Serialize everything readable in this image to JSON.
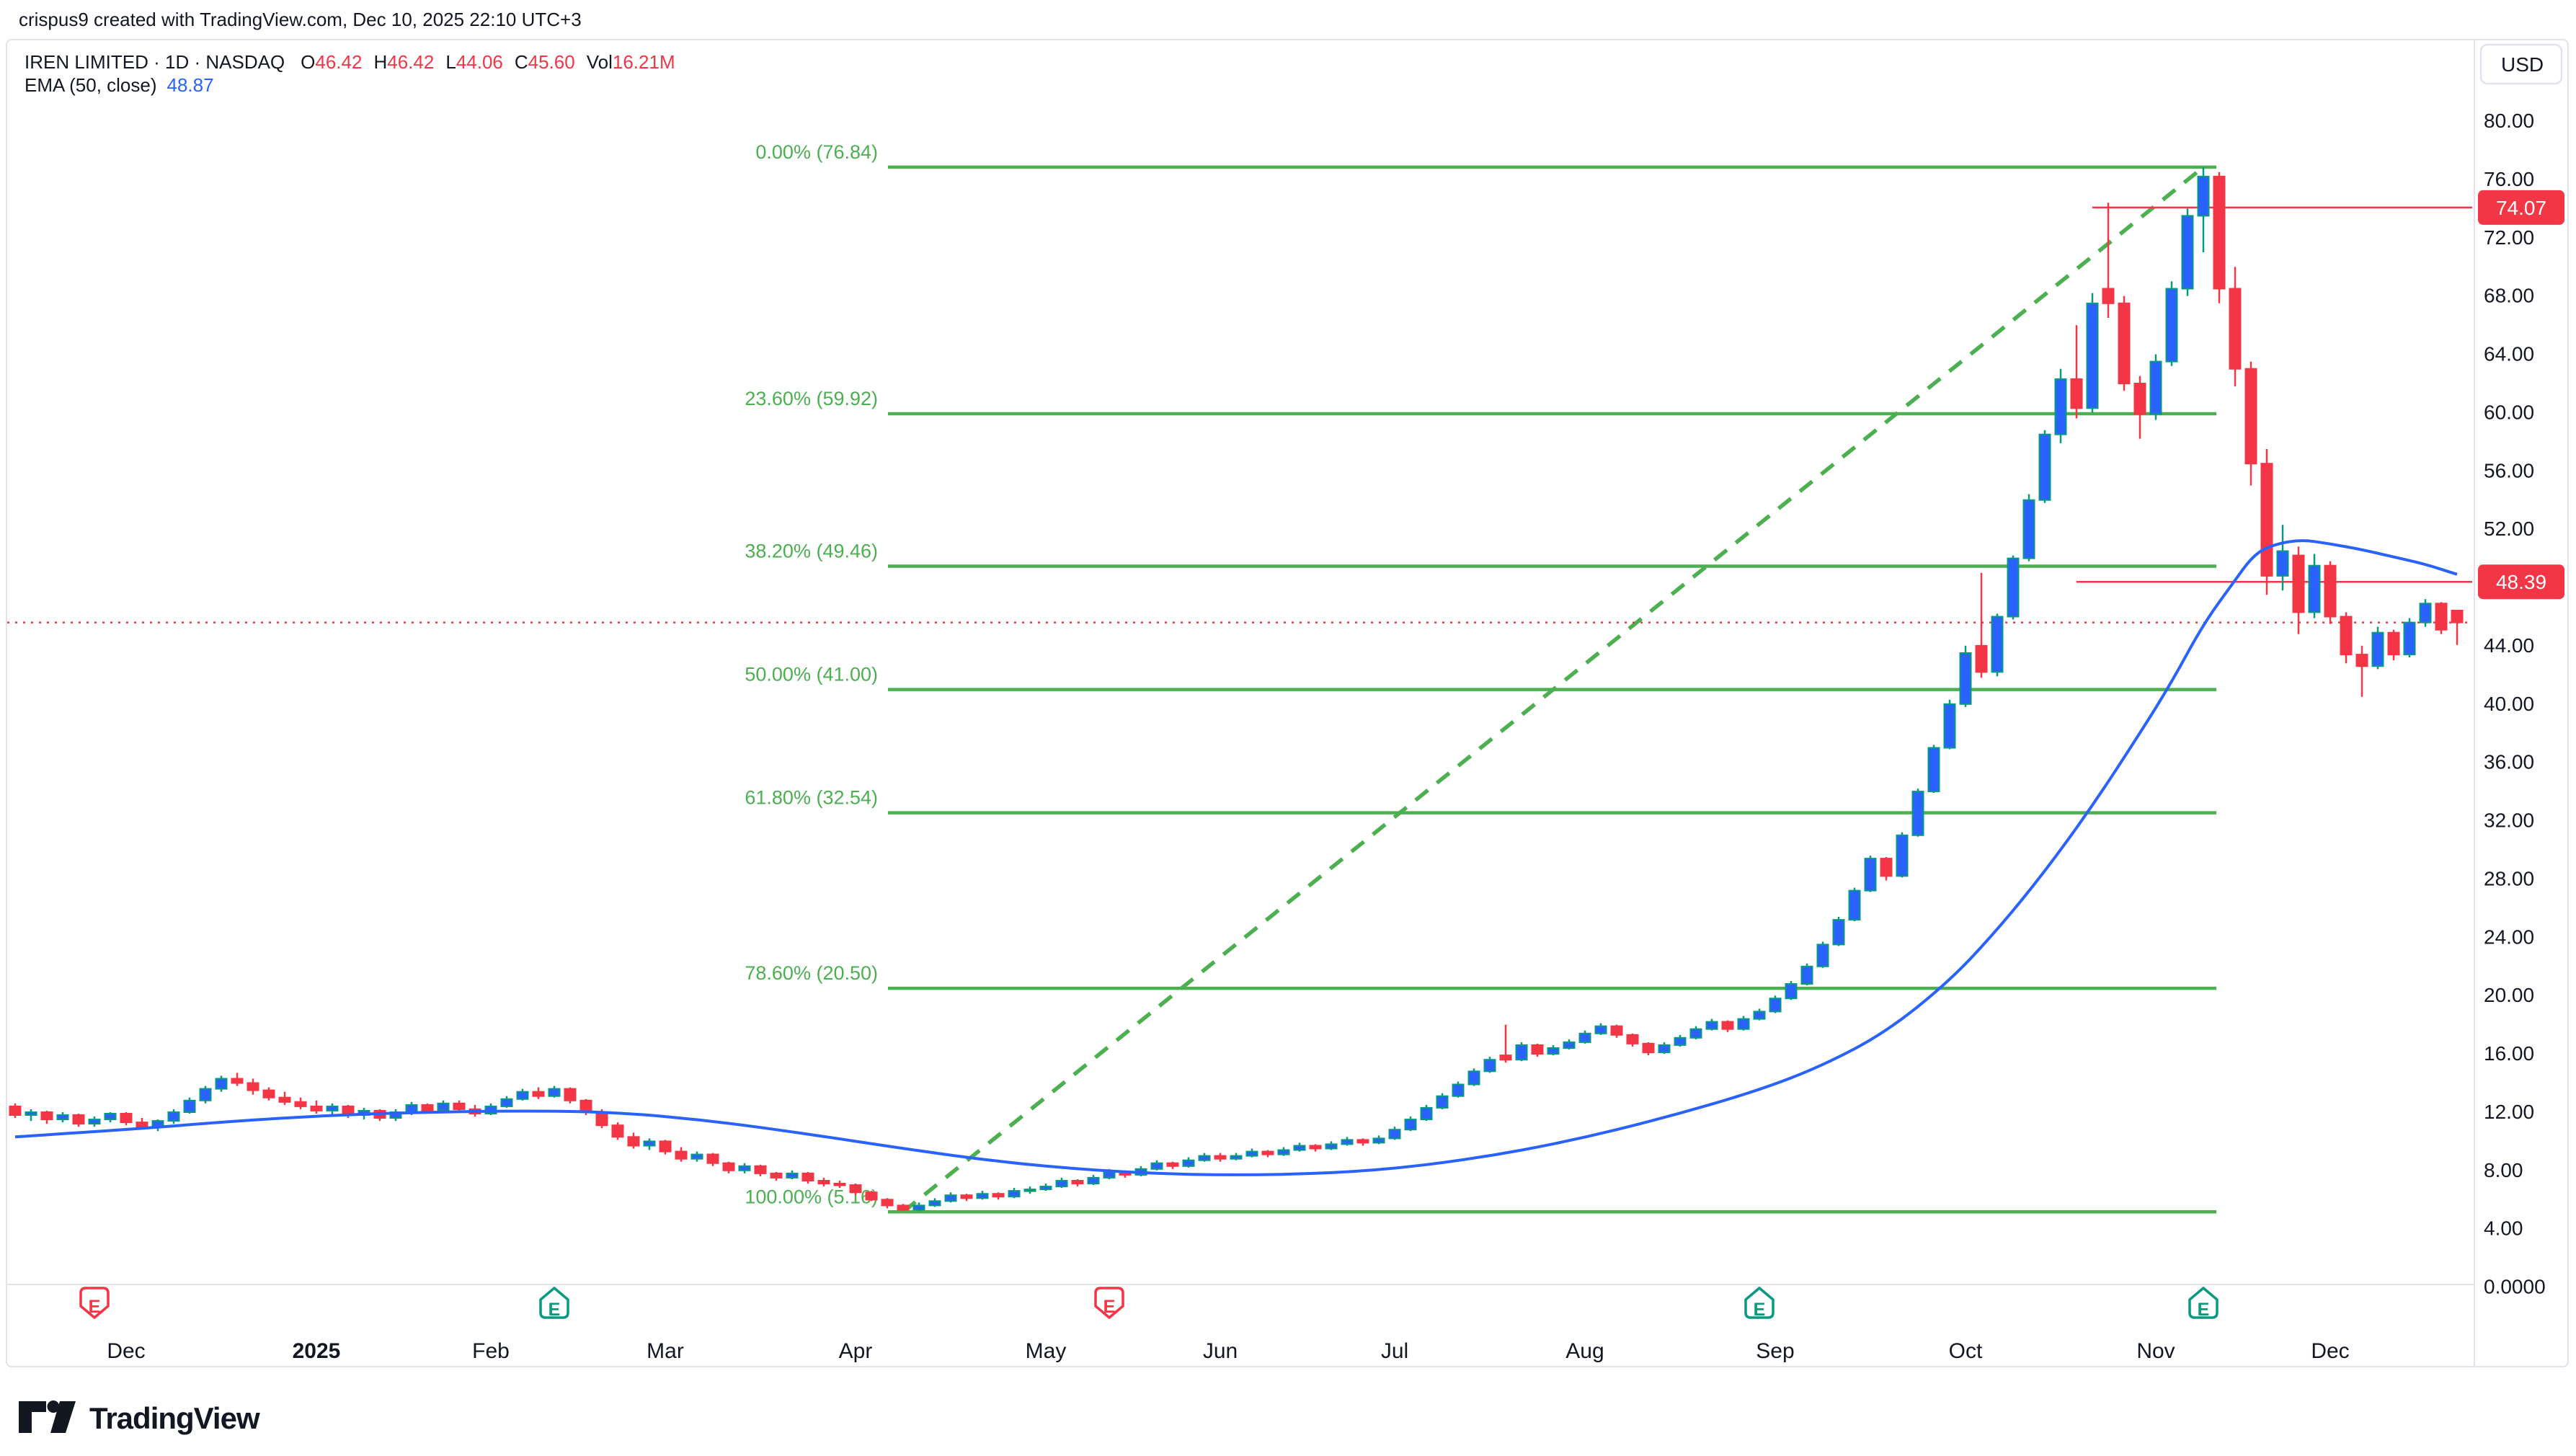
{
  "watermark": "crispus9 created with TradingView.com, Dec 10, 2025 22:10 UTC+3",
  "legend": {
    "title": "IREN LIMITED · 1D · NASDAQ",
    "ohlc": {
      "open_label": "O",
      "open": "46.42",
      "high_label": "H",
      "high": "46.42",
      "low_label": "L",
      "low": "44.06",
      "close_label": "C",
      "close": "45.60",
      "volume_label": "Vol",
      "volume": "16.21M"
    },
    "indicator": {
      "name": "EMA (50, close)",
      "value": "48.87"
    }
  },
  "price_axis": {
    "currency": "USD",
    "labels": [
      {
        "text": "80.00",
        "price": 80
      },
      {
        "text": "76.00",
        "price": 76
      },
      {
        "text": "72.00",
        "price": 72
      },
      {
        "text": "68.00",
        "price": 68
      },
      {
        "text": "64.00",
        "price": 64
      },
      {
        "text": "60.00",
        "price": 60
      },
      {
        "text": "56.00",
        "price": 56
      },
      {
        "text": "52.00",
        "price": 52
      },
      {
        "text": "44.00",
        "price": 44
      },
      {
        "text": "40.00",
        "price": 40
      },
      {
        "text": "36.00",
        "price": 36
      },
      {
        "text": "32.00",
        "price": 32
      },
      {
        "text": "28.00",
        "price": 28
      },
      {
        "text": "24.00",
        "price": 24
      },
      {
        "text": "20.00",
        "price": 20
      },
      {
        "text": "16.00",
        "price": 16
      },
      {
        "text": "12.00",
        "price": 12
      },
      {
        "text": "8.00",
        "price": 8
      },
      {
        "text": "4.00",
        "price": 4
      },
      {
        "text": "0.0000",
        "price": 0
      }
    ],
    "badges": [
      {
        "text": "74.07",
        "price": 74.07
      },
      {
        "text": "48.39",
        "price": 48.39
      }
    ]
  },
  "time_axis": {
    "months": [
      {
        "label": "Dec",
        "index": 7,
        "bold": false
      },
      {
        "label": "2025",
        "index": 19,
        "bold": true
      },
      {
        "label": "Feb",
        "index": 30,
        "bold": false
      },
      {
        "label": "Mar",
        "index": 41,
        "bold": false
      },
      {
        "label": "Apr",
        "index": 53,
        "bold": false
      },
      {
        "label": "May",
        "index": 65,
        "bold": false
      },
      {
        "label": "Jun",
        "index": 76,
        "bold": false
      },
      {
        "label": "Jul",
        "index": 87,
        "bold": false
      },
      {
        "label": "Aug",
        "index": 99,
        "bold": false
      },
      {
        "label": "Sep",
        "index": 111,
        "bold": false
      },
      {
        "label": "Oct",
        "index": 123,
        "bold": false
      },
      {
        "label": "Nov",
        "index": 135,
        "bold": false
      },
      {
        "label": "Dec",
        "index": 146,
        "bold": false
      }
    ],
    "earnings_markers": [
      {
        "index": 5,
        "letter": "E",
        "direction": "down",
        "color": "#F23645"
      },
      {
        "index": 34,
        "letter": "E",
        "direction": "up",
        "color": "#089981"
      },
      {
        "index": 69,
        "letter": "E",
        "direction": "down",
        "color": "#F23645"
      },
      {
        "index": 110,
        "letter": "E",
        "direction": "up",
        "color": "#089981"
      },
      {
        "index": 138,
        "letter": "E",
        "direction": "up",
        "color": "#089981"
      }
    ]
  },
  "logo": {
    "text": "TradingView"
  },
  "colors": {
    "up_fill": "#2962FF",
    "up_stroke": "#089981",
    "down": "#F23645",
    "ema": "#2962FF",
    "fib": "#4CAF50",
    "axis_text": "#131722",
    "separator": "#E0E3EB",
    "badge_bg": "#F23645",
    "badge_text": "#ffffff"
  },
  "chart_data": {
    "type": "candlestick",
    "title": "IREN LIMITED · 1D · NASDAQ",
    "symbol": "IREN LIMITED",
    "interval": "1D",
    "exchange": "NASDAQ",
    "currency": "USD",
    "y_view_range": [
      0,
      85
    ],
    "x_range_labels": [
      "Dec 2024",
      "Dec 2025"
    ],
    "grid": false,
    "last_candle": {
      "open": 46.42,
      "high": 46.42,
      "low": 44.06,
      "close": 45.6,
      "volume": "16.21M"
    },
    "last_price_line": 45.6,
    "ema_period": 50,
    "ema_last_value": 48.87,
    "candles": [
      [
        12.4,
        12.6,
        11.6,
        11.8
      ],
      [
        11.8,
        12.2,
        11.4,
        12.0
      ],
      [
        12.0,
        12.1,
        11.2,
        11.5
      ],
      [
        11.5,
        12.0,
        11.3,
        11.8
      ],
      [
        11.8,
        11.9,
        11.0,
        11.2
      ],
      [
        11.2,
        11.7,
        11.0,
        11.5
      ],
      [
        11.5,
        12.0,
        11.3,
        11.9
      ],
      [
        11.9,
        12.0,
        11.1,
        11.3
      ],
      [
        11.3,
        11.6,
        10.8,
        11.0
      ],
      [
        11.0,
        11.5,
        10.7,
        11.4
      ],
      [
        11.4,
        12.2,
        11.2,
        12.0
      ],
      [
        12.0,
        13.0,
        11.9,
        12.8
      ],
      [
        12.8,
        13.8,
        12.6,
        13.6
      ],
      [
        13.6,
        14.5,
        13.4,
        14.3
      ],
      [
        14.3,
        14.7,
        13.8,
        14.0
      ],
      [
        14.0,
        14.3,
        13.2,
        13.5
      ],
      [
        13.5,
        13.7,
        12.8,
        13.0
      ],
      [
        13.0,
        13.4,
        12.5,
        12.7
      ],
      [
        12.7,
        13.0,
        12.2,
        12.4
      ],
      [
        12.4,
        12.8,
        11.9,
        12.1
      ],
      [
        12.1,
        12.6,
        11.8,
        12.4
      ],
      [
        12.4,
        12.5,
        11.6,
        11.8
      ],
      [
        11.8,
        12.3,
        11.5,
        12.1
      ],
      [
        12.1,
        12.2,
        11.4,
        11.6
      ],
      [
        11.6,
        12.2,
        11.4,
        12.0
      ],
      [
        12.0,
        12.7,
        11.8,
        12.5
      ],
      [
        12.5,
        12.6,
        11.9,
        12.1
      ],
      [
        12.1,
        12.8,
        12.0,
        12.6
      ],
      [
        12.6,
        12.8,
        12.0,
        12.2
      ],
      [
        12.2,
        12.5,
        11.7,
        11.9
      ],
      [
        11.9,
        12.6,
        11.8,
        12.4
      ],
      [
        12.4,
        13.1,
        12.3,
        12.9
      ],
      [
        12.9,
        13.6,
        12.8,
        13.4
      ],
      [
        13.4,
        13.7,
        12.9,
        13.1
      ],
      [
        13.1,
        13.8,
        13.0,
        13.6
      ],
      [
        13.6,
        13.7,
        12.6,
        12.8
      ],
      [
        12.8,
        12.9,
        11.8,
        12.0
      ],
      [
        12.0,
        12.2,
        10.9,
        11.1
      ],
      [
        11.1,
        11.3,
        10.1,
        10.3
      ],
      [
        10.3,
        10.6,
        9.5,
        9.7
      ],
      [
        9.7,
        10.2,
        9.4,
        10.0
      ],
      [
        10.0,
        10.1,
        9.1,
        9.3
      ],
      [
        9.3,
        9.6,
        8.6,
        8.8
      ],
      [
        8.8,
        9.3,
        8.6,
        9.1
      ],
      [
        9.1,
        9.2,
        8.3,
        8.5
      ],
      [
        8.5,
        8.6,
        7.8,
        8.0
      ],
      [
        8.0,
        8.5,
        7.8,
        8.3
      ],
      [
        8.3,
        8.4,
        7.6,
        7.8
      ],
      [
        7.8,
        7.9,
        7.3,
        7.5
      ],
      [
        7.5,
        8.0,
        7.4,
        7.8
      ],
      [
        7.8,
        7.9,
        7.1,
        7.3
      ],
      [
        7.3,
        7.5,
        6.9,
        7.1
      ],
      [
        7.1,
        7.3,
        6.8,
        7.0
      ],
      [
        7.0,
        7.1,
        6.3,
        6.5
      ],
      [
        6.5,
        6.6,
        5.9,
        6.0
      ],
      [
        6.0,
        6.1,
        5.4,
        5.6
      ],
      [
        5.6,
        5.7,
        5.2,
        5.3
      ],
      [
        5.3,
        5.8,
        5.2,
        5.6
      ],
      [
        5.6,
        6.1,
        5.5,
        5.9
      ],
      [
        5.9,
        6.5,
        5.8,
        6.3
      ],
      [
        6.3,
        6.4,
        5.9,
        6.1
      ],
      [
        6.1,
        6.6,
        6.0,
        6.4
      ],
      [
        6.4,
        6.5,
        6.0,
        6.2
      ],
      [
        6.2,
        6.8,
        6.1,
        6.6
      ],
      [
        6.6,
        6.9,
        6.4,
        6.7
      ],
      [
        6.7,
        7.1,
        6.6,
        6.9
      ],
      [
        6.9,
        7.5,
        6.8,
        7.3
      ],
      [
        7.3,
        7.4,
        6.9,
        7.1
      ],
      [
        7.1,
        7.7,
        7.0,
        7.5
      ],
      [
        7.5,
        8.1,
        7.4,
        7.9
      ],
      [
        7.9,
        8.0,
        7.5,
        7.7
      ],
      [
        7.7,
        8.3,
        7.6,
        8.1
      ],
      [
        8.1,
        8.7,
        8.0,
        8.5
      ],
      [
        8.5,
        8.6,
        8.1,
        8.3
      ],
      [
        8.3,
        8.9,
        8.2,
        8.7
      ],
      [
        8.7,
        9.2,
        8.6,
        9.0
      ],
      [
        9.0,
        9.2,
        8.6,
        8.8
      ],
      [
        8.8,
        9.2,
        8.7,
        9.0
      ],
      [
        9.0,
        9.5,
        8.9,
        9.3
      ],
      [
        9.3,
        9.4,
        8.9,
        9.1
      ],
      [
        9.1,
        9.6,
        9.0,
        9.4
      ],
      [
        9.4,
        9.9,
        9.3,
        9.7
      ],
      [
        9.7,
        9.8,
        9.3,
        9.5
      ],
      [
        9.5,
        10.0,
        9.4,
        9.8
      ],
      [
        9.8,
        10.3,
        9.7,
        10.1
      ],
      [
        10.1,
        10.2,
        9.7,
        9.9
      ],
      [
        9.9,
        10.4,
        9.8,
        10.2
      ],
      [
        10.2,
        11.0,
        10.1,
        10.8
      ],
      [
        10.8,
        11.7,
        10.7,
        11.5
      ],
      [
        11.5,
        12.5,
        11.4,
        12.3
      ],
      [
        12.3,
        13.3,
        12.2,
        13.1
      ],
      [
        13.1,
        14.1,
        13.0,
        13.9
      ],
      [
        13.9,
        15.0,
        13.8,
        14.8
      ],
      [
        14.8,
        15.8,
        14.7,
        15.6
      ],
      [
        15.9,
        18.0,
        15.4,
        15.6
      ],
      [
        15.6,
        16.8,
        15.5,
        16.6
      ],
      [
        16.6,
        16.7,
        15.8,
        16.0
      ],
      [
        16.0,
        16.6,
        15.9,
        16.4
      ],
      [
        16.4,
        17.0,
        16.3,
        16.8
      ],
      [
        16.8,
        17.6,
        16.7,
        17.4
      ],
      [
        17.4,
        18.1,
        17.3,
        17.9
      ],
      [
        17.9,
        18.0,
        17.1,
        17.3
      ],
      [
        17.3,
        17.4,
        16.5,
        16.7
      ],
      [
        16.7,
        16.8,
        15.9,
        16.1
      ],
      [
        16.1,
        16.8,
        16.0,
        16.6
      ],
      [
        16.6,
        17.3,
        16.5,
        17.1
      ],
      [
        17.1,
        17.9,
        17.0,
        17.7
      ],
      [
        17.7,
        18.4,
        17.6,
        18.2
      ],
      [
        18.2,
        18.3,
        17.5,
        17.7
      ],
      [
        17.7,
        18.6,
        17.6,
        18.4
      ],
      [
        18.4,
        19.1,
        18.3,
        18.9
      ],
      [
        18.9,
        20.0,
        18.8,
        19.8
      ],
      [
        19.8,
        21.0,
        19.7,
        20.8
      ],
      [
        20.8,
        22.2,
        20.7,
        22.0
      ],
      [
        22.0,
        23.7,
        21.9,
        23.5
      ],
      [
        23.5,
        25.4,
        23.4,
        25.2
      ],
      [
        25.2,
        27.4,
        25.1,
        27.2
      ],
      [
        27.2,
        29.6,
        27.1,
        29.4
      ],
      [
        29.4,
        29.5,
        27.9,
        28.2
      ],
      [
        28.2,
        31.2,
        28.1,
        31.0
      ],
      [
        31.0,
        34.2,
        30.9,
        34.0
      ],
      [
        34.0,
        37.2,
        33.9,
        37.0
      ],
      [
        37.0,
        40.3,
        36.9,
        40.0
      ],
      [
        40.0,
        44.0,
        39.8,
        43.5
      ],
      [
        44.0,
        49.0,
        41.8,
        42.2
      ],
      [
        42.2,
        46.2,
        41.9,
        46.0
      ],
      [
        46.0,
        50.2,
        45.8,
        50.0
      ],
      [
        50.0,
        54.4,
        49.8,
        54.0
      ],
      [
        54.0,
        58.8,
        53.8,
        58.5
      ],
      [
        58.5,
        63.0,
        57.9,
        62.3
      ],
      [
        62.3,
        66.0,
        59.6,
        60.3
      ],
      [
        60.3,
        68.2,
        60.0,
        67.5
      ],
      [
        68.5,
        74.4,
        66.5,
        67.5
      ],
      [
        67.5,
        68.0,
        61.5,
        62.0
      ],
      [
        62.0,
        62.5,
        58.2,
        59.9
      ],
      [
        59.9,
        64.0,
        59.5,
        63.5
      ],
      [
        63.5,
        69.0,
        63.2,
        68.5
      ],
      [
        68.5,
        74.0,
        68.0,
        73.5
      ],
      [
        73.5,
        76.84,
        71.0,
        76.2
      ],
      [
        76.2,
        76.5,
        67.5,
        68.5
      ],
      [
        68.5,
        70.0,
        61.8,
        63.0
      ],
      [
        63.0,
        63.5,
        55.0,
        56.5
      ],
      [
        56.5,
        57.5,
        47.5,
        48.8
      ],
      [
        48.8,
        52.3,
        47.8,
        50.5
      ],
      [
        50.2,
        50.8,
        44.8,
        46.3
      ],
      [
        46.3,
        50.3,
        45.9,
        49.5
      ],
      [
        49.5,
        49.8,
        45.5,
        46.0
      ],
      [
        46.0,
        46.3,
        42.8,
        43.4
      ],
      [
        43.4,
        44.0,
        40.5,
        42.6
      ],
      [
        42.6,
        45.3,
        42.4,
        44.9
      ],
      [
        44.9,
        45.1,
        43.0,
        43.4
      ],
      [
        43.4,
        45.9,
        43.2,
        45.6
      ],
      [
        45.6,
        47.2,
        45.3,
        46.9
      ],
      [
        46.9,
        47.0,
        44.8,
        45.1
      ],
      [
        46.42,
        46.42,
        44.06,
        45.6
      ]
    ],
    "ema_anchors": [
      [
        0,
        10.3
      ],
      [
        7,
        10.8
      ],
      [
        14,
        11.4
      ],
      [
        20,
        11.8
      ],
      [
        26,
        12.0
      ],
      [
        32,
        12.1
      ],
      [
        38,
        12.0
      ],
      [
        44,
        11.4
      ],
      [
        50,
        10.5
      ],
      [
        56,
        9.5
      ],
      [
        62,
        8.6
      ],
      [
        68,
        8.0
      ],
      [
        74,
        7.7
      ],
      [
        80,
        7.7
      ],
      [
        86,
        8.0
      ],
      [
        92,
        8.8
      ],
      [
        98,
        10.0
      ],
      [
        104,
        11.6
      ],
      [
        110,
        13.5
      ],
      [
        114,
        15.2
      ],
      [
        118,
        17.5
      ],
      [
        122,
        21.0
      ],
      [
        125,
        24.5
      ],
      [
        128,
        28.5
      ],
      [
        131,
        33.0
      ],
      [
        134,
        38.0
      ],
      [
        136,
        41.5
      ],
      [
        138,
        45.5
      ],
      [
        140,
        48.5
      ],
      [
        141,
        50.0
      ],
      [
        142,
        50.8
      ],
      [
        144,
        51.3
      ],
      [
        146,
        51.0
      ],
      [
        148,
        50.6
      ],
      [
        150,
        50.1
      ],
      [
        152,
        49.6
      ],
      [
        154,
        48.9
      ]
    ],
    "fib_retracement": {
      "levels": [
        {
          "label": "0.00% (76.84)",
          "price": 76.84
        },
        {
          "label": "23.60% (59.92)",
          "price": 59.92
        },
        {
          "label": "38.20% (49.46)",
          "price": 49.46
        },
        {
          "label": "50.00% (41.00)",
          "price": 41.0
        },
        {
          "label": "61.80% (32.54)",
          "price": 32.54
        },
        {
          "label": "78.60% (20.50)",
          "price": 20.5
        },
        {
          "label": "100.00% (5.16)",
          "price": 5.16
        }
      ],
      "trendline": {
        "from_index": 56,
        "from_price": 5.16,
        "to_index": 138,
        "to_price": 76.84
      }
    },
    "horizontal_lines": [
      {
        "price": 74.07,
        "start_index": 131
      },
      {
        "price": 48.39,
        "start_index": 130
      }
    ]
  }
}
